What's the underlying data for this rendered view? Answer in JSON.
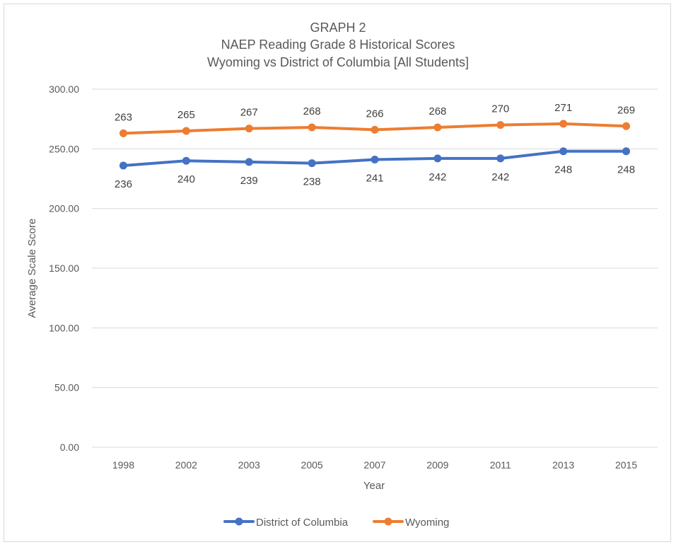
{
  "chart_data": {
    "type": "line",
    "title_lines": [
      "GRAPH 2",
      "NAEP Reading Grade 8 Historical Scores",
      "Wyoming vs District of Columbia [All Students]"
    ],
    "xlabel": "Year",
    "ylabel": "Average Scale Score",
    "categories": [
      "1998",
      "2002",
      "2003",
      "2005",
      "2007",
      "2009",
      "2011",
      "2013",
      "2015"
    ],
    "ylim": [
      0,
      300
    ],
    "yticks": [
      0,
      50,
      100,
      150,
      200,
      250,
      300
    ],
    "ytick_labels": [
      "0.00",
      "50.00",
      "100.00",
      "150.00",
      "200.00",
      "250.00",
      "300.00"
    ],
    "grid": true,
    "legend_position": "bottom",
    "series": [
      {
        "name": "District of Columbia",
        "color": "#4472c4",
        "values": [
          236,
          240,
          239,
          238,
          241,
          242,
          242,
          248,
          248
        ],
        "label_position": "below"
      },
      {
        "name": "Wyoming",
        "color": "#ed7d31",
        "values": [
          263,
          265,
          267,
          268,
          266,
          268,
          270,
          271,
          269
        ],
        "label_position": "above"
      }
    ]
  }
}
